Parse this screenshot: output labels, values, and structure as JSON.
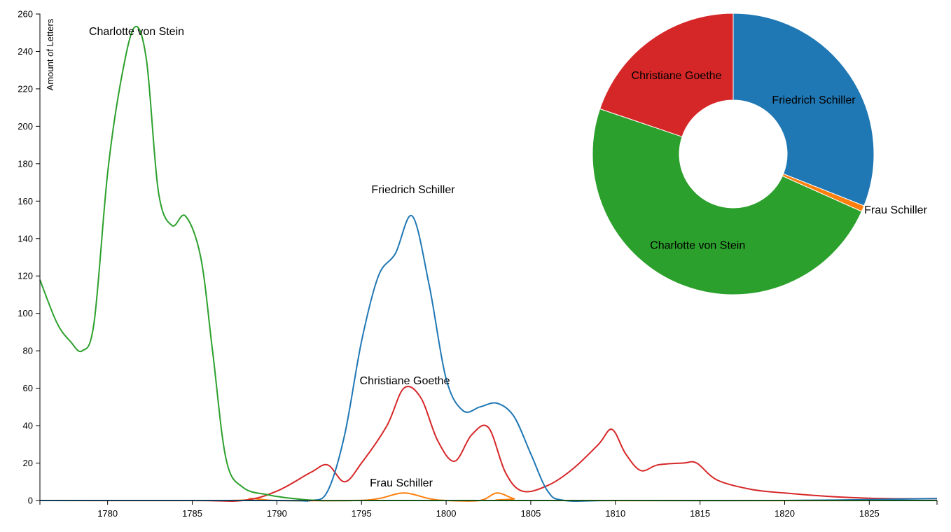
{
  "chart_data": [
    {
      "type": "line",
      "ylabel": "Amount of Letters",
      "xlim": [
        1776,
        1829
      ],
      "ylim": [
        0,
        260
      ],
      "x_ticks": [
        1780,
        1785,
        1790,
        1795,
        1800,
        1805,
        1810,
        1815,
        1820,
        1825
      ],
      "y_ticks": [
        0,
        20,
        40,
        60,
        80,
        100,
        120,
        140,
        160,
        180,
        200,
        220,
        240,
        260
      ],
      "series": [
        {
          "name": "Charlotte von Stein",
          "color": "#2ca02c",
          "points": [
            [
              1776,
              118
            ],
            [
              1777,
              95
            ],
            [
              1777.8,
              85
            ],
            [
              1778.5,
              80
            ],
            [
              1779.2,
              95
            ],
            [
              1780,
              175
            ],
            [
              1780.8,
              225
            ],
            [
              1781.6,
              253
            ],
            [
              1782.3,
              235
            ],
            [
              1783,
              165
            ],
            [
              1783.8,
              147
            ],
            [
              1784.6,
              152
            ],
            [
              1785.5,
              130
            ],
            [
              1786.2,
              80
            ],
            [
              1787,
              22
            ],
            [
              1788,
              7
            ],
            [
              1789.5,
              3
            ],
            [
              1791,
              1
            ],
            [
              1792.5,
              0
            ],
            [
              1795,
              0
            ],
            [
              1800,
              0
            ],
            [
              1805,
              0
            ],
            [
              1810,
              0
            ],
            [
              1815,
              0
            ],
            [
              1820,
              0
            ],
            [
              1825,
              0
            ],
            [
              1829,
              0
            ]
          ]
        },
        {
          "name": "Friedrich Schiller",
          "color": "#1f77b4",
          "points": [
            [
              1776,
              0
            ],
            [
              1790,
              0
            ],
            [
              1792,
              0
            ],
            [
              1793,
              5
            ],
            [
              1794,
              35
            ],
            [
              1795,
              85
            ],
            [
              1796,
              120
            ],
            [
              1797,
              132
            ],
            [
              1798,
              152
            ],
            [
              1799,
              115
            ],
            [
              1800,
              65
            ],
            [
              1801,
              48
            ],
            [
              1802,
              50
            ],
            [
              1803,
              52
            ],
            [
              1804,
              45
            ],
            [
              1805,
              25
            ],
            [
              1806,
              5
            ],
            [
              1807,
              0
            ],
            [
              1810,
              0
            ],
            [
              1820,
              0
            ],
            [
              1829,
              1
            ]
          ]
        },
        {
          "name": "Christiane Goethe",
          "color": "#d62728",
          "points": [
            [
              1776,
              0
            ],
            [
              1785,
              0
            ],
            [
              1788,
              0
            ],
            [
              1790,
              5
            ],
            [
              1792,
              15
            ],
            [
              1793,
              19
            ],
            [
              1794,
              10
            ],
            [
              1795,
              20
            ],
            [
              1796.5,
              40
            ],
            [
              1797.5,
              60
            ],
            [
              1798.5,
              55
            ],
            [
              1799.5,
              32
            ],
            [
              1800.5,
              21
            ],
            [
              1801.5,
              35
            ],
            [
              1802.5,
              39
            ],
            [
              1803.5,
              15
            ],
            [
              1804.5,
              5
            ],
            [
              1806,
              8
            ],
            [
              1807.5,
              17
            ],
            [
              1809,
              30
            ],
            [
              1809.8,
              38
            ],
            [
              1810.6,
              25
            ],
            [
              1811.5,
              16
            ],
            [
              1812.5,
              19
            ],
            [
              1814,
              20
            ],
            [
              1814.8,
              20
            ],
            [
              1816,
              11
            ],
            [
              1818,
              6
            ],
            [
              1820,
              4
            ],
            [
              1823,
              2
            ],
            [
              1826,
              1
            ],
            [
              1829,
              1
            ]
          ]
        },
        {
          "name": "Frau Schiller",
          "color": "#ff7f0e",
          "points": [
            [
              1776,
              0
            ],
            [
              1787,
              0
            ],
            [
              1788.5,
              1
            ],
            [
              1790,
              0
            ],
            [
              1794.5,
              0
            ],
            [
              1796,
              1
            ],
            [
              1797.5,
              4
            ],
            [
              1799,
              1
            ],
            [
              1800,
              0
            ],
            [
              1802,
              0
            ],
            [
              1803,
              4
            ],
            [
              1804,
              1
            ],
            [
              1805,
              0
            ],
            [
              1829,
              0
            ]
          ]
        }
      ]
    },
    {
      "type": "pie",
      "donut": true,
      "slices": [
        {
          "name": "Friedrich Schiller",
          "value": 31.0,
          "color": "#1f77b4"
        },
        {
          "name": "Frau Schiller",
          "value": 0.7,
          "color": "#ff7f0e"
        },
        {
          "name": "Charlotte von Stein",
          "value": 48.5,
          "color": "#2ca02c"
        },
        {
          "name": "Christiane Goethe",
          "value": 19.8,
          "color": "#d62728"
        }
      ]
    }
  ]
}
